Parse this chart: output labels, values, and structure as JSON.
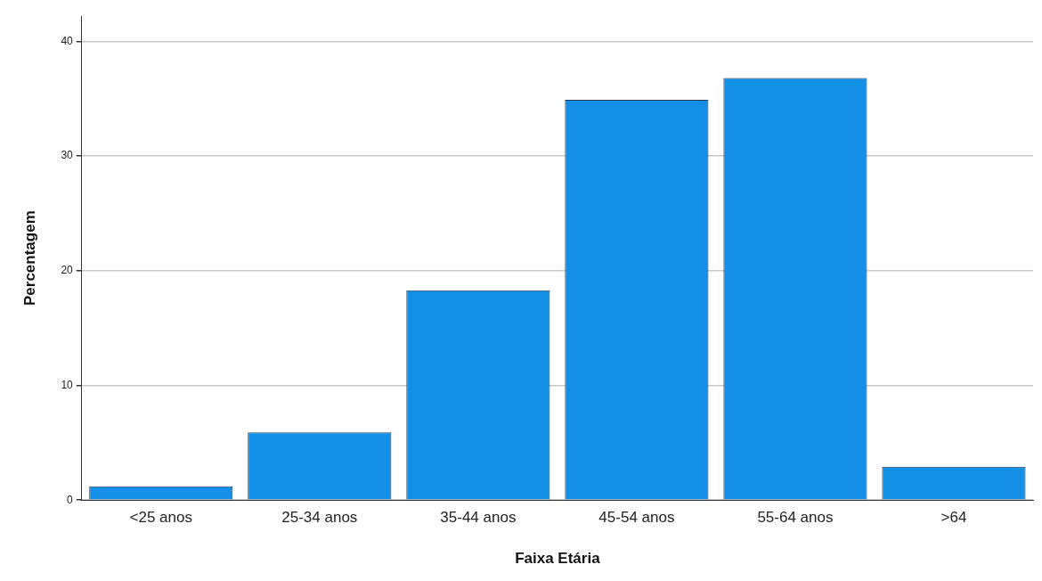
{
  "chart_data": {
    "type": "bar",
    "xlabel": "Faixa Etária",
    "ylabel": "Percentagem",
    "categories": [
      "<25 anos",
      "25-34 anos",
      "35-44 anos",
      "45-54 anos",
      "55-64 anos",
      ">64"
    ],
    "values": [
      1.2,
      5.9,
      18.3,
      34.9,
      36.8,
      2.9
    ],
    "color": "#1390e6",
    "ylim": [
      0,
      42.2
    ],
    "yticks": [
      0,
      10,
      20,
      30,
      40
    ],
    "grid": "y",
    "legend": false
  }
}
